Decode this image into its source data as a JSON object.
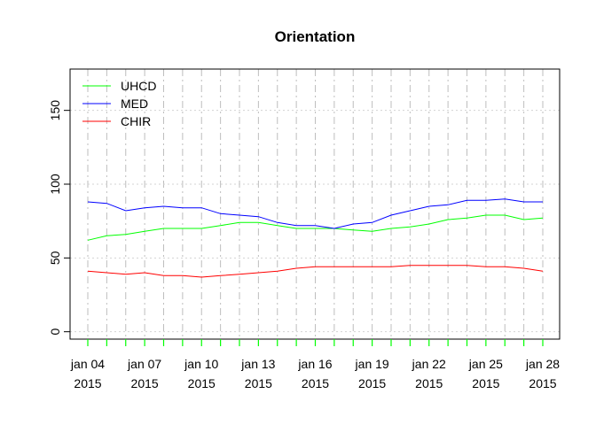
{
  "chart_data": {
    "type": "line",
    "title": "Orientation",
    "xlabel": "",
    "ylabel": "",
    "ylim": [
      -5,
      178
    ],
    "y_ticks": [
      0,
      50,
      100,
      150
    ],
    "x": [
      "2015-01-04",
      "2015-01-05",
      "2015-01-06",
      "2015-01-07",
      "2015-01-08",
      "2015-01-09",
      "2015-01-10",
      "2015-01-11",
      "2015-01-12",
      "2015-01-13",
      "2015-01-14",
      "2015-01-15",
      "2015-01-16",
      "2015-01-17",
      "2015-01-18",
      "2015-01-19",
      "2015-01-20",
      "2015-01-21",
      "2015-01-22",
      "2015-01-23",
      "2015-01-24",
      "2015-01-25",
      "2015-01-26",
      "2015-01-27",
      "2015-01-28"
    ],
    "x_tick_labels": [
      {
        "date": "2015-01-04",
        "line1": "jan 04",
        "line2": "2015"
      },
      {
        "date": "2015-01-07",
        "line1": "jan 07",
        "line2": "2015"
      },
      {
        "date": "2015-01-10",
        "line1": "jan 10",
        "line2": "2015"
      },
      {
        "date": "2015-01-13",
        "line1": "jan 13",
        "line2": "2015"
      },
      {
        "date": "2015-01-16",
        "line1": "jan 16",
        "line2": "2015"
      },
      {
        "date": "2015-01-19",
        "line1": "jan 19",
        "line2": "2015"
      },
      {
        "date": "2015-01-22",
        "line1": "jan 22",
        "line2": "2015"
      },
      {
        "date": "2015-01-25",
        "line1": "jan 25",
        "line2": "2015"
      },
      {
        "date": "2015-01-28",
        "line1": "jan 28",
        "line2": "2015"
      }
    ],
    "series": [
      {
        "name": "UHCD",
        "color": "#00ff00",
        "values": [
          62,
          65,
          66,
          68,
          70,
          70,
          70,
          72,
          74,
          74,
          72,
          70,
          70,
          70,
          69,
          68,
          70,
          71,
          73,
          76,
          77,
          79,
          79,
          76,
          77
        ]
      },
      {
        "name": "MED",
        "color": "#0000ff",
        "values": [
          88,
          87,
          82,
          84,
          85,
          84,
          84,
          80,
          79,
          78,
          74,
          72,
          72,
          70,
          73,
          74,
          79,
          82,
          85,
          86,
          89,
          89,
          90,
          88,
          88
        ]
      },
      {
        "name": "CHIR",
        "color": "#ff0000",
        "values": [
          41,
          40,
          39,
          40,
          38,
          38,
          37,
          38,
          39,
          40,
          41,
          43,
          44,
          44,
          44,
          44,
          44,
          45,
          45,
          45,
          45,
          44,
          44,
          43,
          41
        ]
      }
    ],
    "grid": true,
    "legend_position": "top-left"
  }
}
